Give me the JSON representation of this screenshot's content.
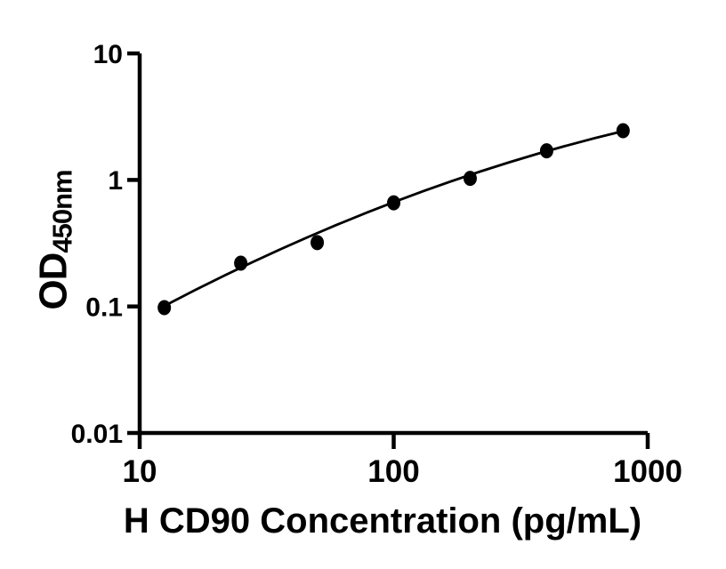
{
  "figure": {
    "background": "#ffffff"
  },
  "chart_data": {
    "type": "scatter",
    "subtype": "elisa-standard-curve",
    "title": "",
    "xlabel": "H CD90 Concentration (pg/mL)",
    "ylabel_main": "OD",
    "ylabel_subscript": "450nm",
    "x_scale": "log",
    "y_scale": "log",
    "xlim": [
      10,
      1000
    ],
    "ylim": [
      0.01,
      10
    ],
    "grid": false,
    "legend": false,
    "axis_color": "#000000",
    "marker_color": "#000000",
    "line_color": "#000000",
    "x_ticks": [
      {
        "value": 10,
        "label": "10"
      },
      {
        "value": 100,
        "label": "100"
      },
      {
        "value": 1000,
        "label": "1000"
      }
    ],
    "y_ticks": [
      {
        "value": 10,
        "label": "10"
      },
      {
        "value": 1,
        "label": "1"
      },
      {
        "value": 0.1,
        "label": "0.1"
      },
      {
        "value": 0.01,
        "label": "0.01"
      }
    ],
    "series": [
      {
        "name": "standard-curve-points",
        "marker": "filled-circle",
        "points": [
          {
            "conc": 12.5,
            "od": 0.098
          },
          {
            "conc": 25,
            "od": 0.22
          },
          {
            "conc": 50,
            "od": 0.32
          },
          {
            "conc": 100,
            "od": 0.66
          },
          {
            "conc": 200,
            "od": 1.03
          },
          {
            "conc": 400,
            "od": 1.7
          },
          {
            "conc": 800,
            "od": 2.45
          }
        ]
      }
    ],
    "fit_curve": {
      "shape": "quadratic-bezier",
      "p0": {
        "conc": 12.5,
        "od": 0.101
      },
      "control": {
        "conc": 100,
        "od": 0.9
      },
      "p1": {
        "conc": 800,
        "od": 2.43
      }
    }
  }
}
